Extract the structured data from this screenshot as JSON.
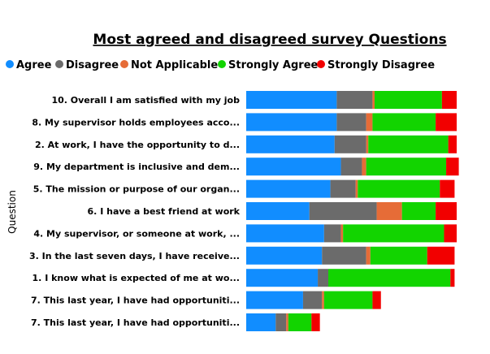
{
  "chart_data": {
    "type": "bar",
    "orientation": "horizontal",
    "stacked": true,
    "normalized": true,
    "title": "Most agreed and disagreed survey Questions",
    "ylabel": "Question",
    "xlabel": "",
    "xlim": [
      0,
      100
    ],
    "grid": false,
    "legend_position": "top-left",
    "categories": [
      "10. Overall I am satisfied with my job",
      "8. My supervisor holds employees acco...",
      "2. At work, I have the opportunity to d...",
      "9. My department is inclusive and dem...",
      "5. The mission or purpose of our organ...",
      "6. I have a best friend at work",
      "4. My supervisor, or someone at work, ...",
      "3. In the last seven days, I have receive...",
      "1. I know what is expected of me at wo...",
      "7. This last year, I have had opportuniti...",
      "7. This last year, I have had opportuniti..."
    ],
    "series": [
      {
        "name": "Agree",
        "color": "#118DFF",
        "values": [
          43,
          43,
          42,
          45,
          40,
          30,
          37,
          36,
          34,
          27,
          14
        ]
      },
      {
        "name": "Disagree",
        "color": "#6B6B6B",
        "values": [
          17,
          14,
          15,
          10,
          12,
          32,
          8,
          21,
          5,
          9,
          5
        ]
      },
      {
        "name": "Not Applicable",
        "color": "#E66C37",
        "values": [
          1,
          3,
          1,
          2,
          1,
          12,
          1,
          2,
          0,
          1,
          1
        ]
      },
      {
        "name": "Strongly Agree",
        "color": "#12D400",
        "values": [
          32,
          30,
          38,
          38,
          39,
          16,
          48,
          27,
          58,
          23,
          11
        ]
      },
      {
        "name": "Strongly Disagree",
        "color": "#F20000",
        "values": [
          7,
          10,
          4,
          6,
          7,
          10,
          6,
          13,
          2,
          4,
          4
        ]
      }
    ]
  }
}
